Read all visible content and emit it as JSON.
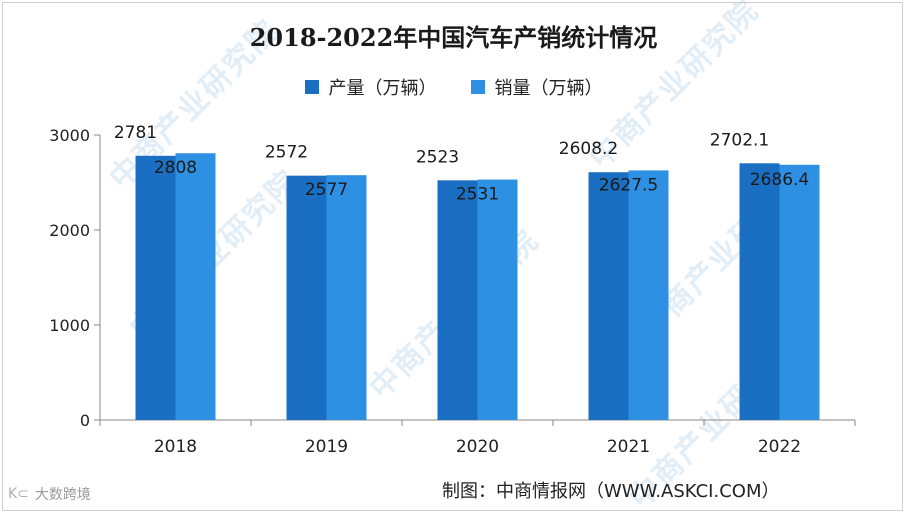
{
  "chart_data": {
    "type": "bar",
    "title": "2018-2022年中国汽车产销统计情况",
    "categories": [
      "2018",
      "2019",
      "2020",
      "2021",
      "2022"
    ],
    "series": [
      {
        "name": "产量（万辆）",
        "values": [
          2781,
          2572,
          2523,
          2608.2,
          2702.1
        ],
        "labels": [
          "2781",
          "2572",
          "2523",
          "2608.2",
          "2702.1"
        ],
        "color": "#1a6fc2"
      },
      {
        "name": "销量（万辆）",
        "values": [
          2808,
          2577,
          2531,
          2627.5,
          2686.4
        ],
        "labels": [
          "2808",
          "2577",
          "2531",
          "2627.5",
          "2686.4"
        ],
        "color": "#2e90e3"
      }
    ],
    "yticks": [
      "0",
      "1000",
      "2000",
      "3000"
    ],
    "ylim": [
      0,
      3000
    ],
    "xlabel": "",
    "ylabel": "",
    "grid": false,
    "legend_position": "top"
  },
  "credit": "制图：中商情报网（WWW.ASKCI.COM）",
  "logo_text": "大数跨境",
  "logo_mark": "K⊂",
  "watermark_text": "中商产业研究院"
}
